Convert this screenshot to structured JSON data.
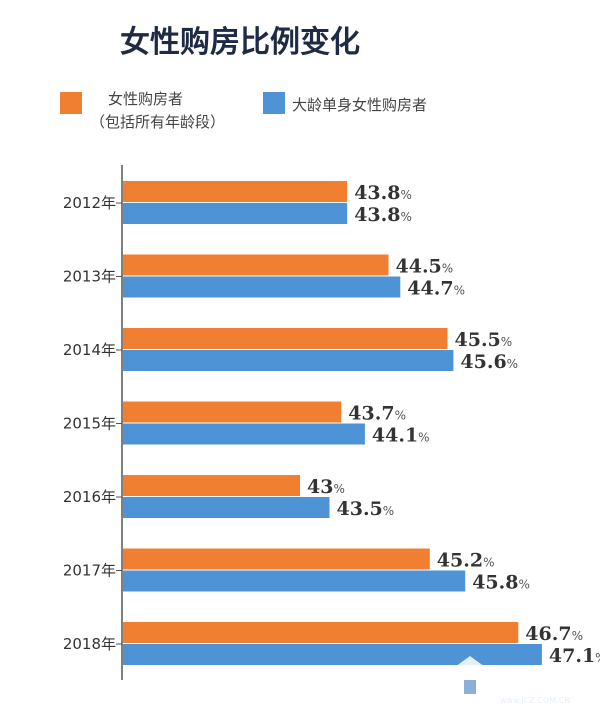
{
  "chart_data": {
    "type": "bar",
    "orientation": "horizontal",
    "title": "女性购房比例变化",
    "categories": [
      "2012年",
      "2013年",
      "2014年",
      "2015年",
      "2016年",
      "2017年",
      "2018年"
    ],
    "series": [
      {
        "name": "女性购房者",
        "name_sub": "（包括所有年龄段）",
        "color": "#f07f32",
        "values": [
          43.8,
          44.5,
          45.5,
          43.7,
          43,
          45.2,
          46.7
        ],
        "labels": [
          "43.8",
          "44.5",
          "45.5",
          "43.7",
          "43",
          "45.2",
          "46.7"
        ]
      },
      {
        "name": "大龄单身女性购房者",
        "color": "#4e93d6",
        "values": [
          43.8,
          44.7,
          45.6,
          44.1,
          43.5,
          45.8,
          47.1
        ],
        "labels": [
          "43.8",
          "44.7",
          "45.6",
          "44.1",
          "43.5",
          "45.8",
          "47.1"
        ]
      }
    ],
    "unit": "%",
    "legend_position": "top-left",
    "grid": false,
    "axis_min": 40,
    "axis_max": 48
  },
  "watermark": {
    "text": "系统之家",
    "url": "www.JCZ.COM.CN"
  }
}
